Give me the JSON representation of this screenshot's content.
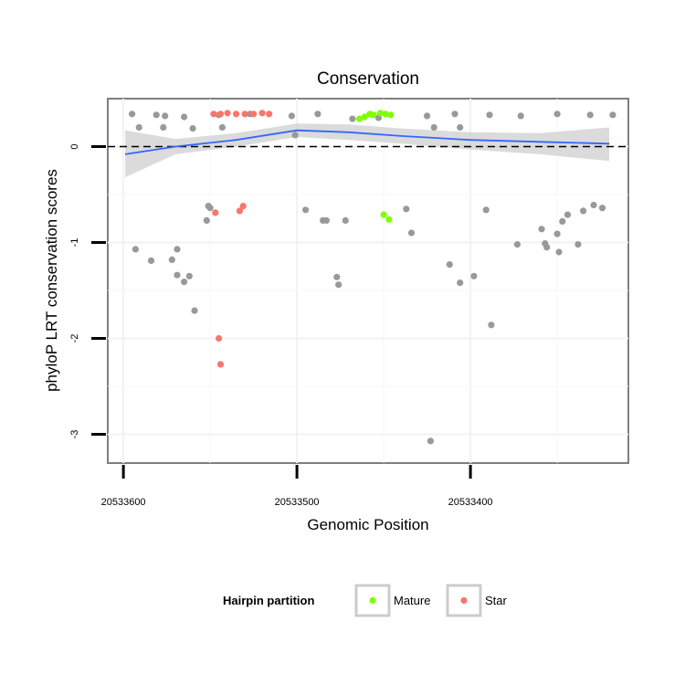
{
  "chart_data": {
    "type": "scatter",
    "title": "Conservation",
    "xlabel": "Genomic Position",
    "ylabel": "phyloP LRT conservation scores",
    "xlim": [
      20533609,
      20533309
    ],
    "ylim": [
      -3.3,
      0.5
    ],
    "x_reversed": true,
    "xticks": [
      20533600,
      20533500,
      20533400
    ],
    "yticks": [
      0,
      -1,
      -2,
      -3
    ],
    "reference_line": {
      "y": 0,
      "style": "dashed"
    },
    "grid": true,
    "legend": {
      "title": "Hairpin partition",
      "placement": "bottom",
      "entries": [
        {
          "name": "Mature",
          "color": "#7fff00"
        },
        {
          "name": "Star",
          "color": "#f8766d"
        }
      ]
    },
    "colors": {
      "other": "#999999",
      "Mature": "#7fff00",
      "Star": "#f8766d",
      "smooth": "#3366ff",
      "band": "#cccccc"
    },
    "series": [
      {
        "group": "Other",
        "points": [
          [
            20533595,
            0.34
          ],
          [
            20533581,
            0.33
          ],
          [
            20533576,
            0.32
          ],
          [
            20533565,
            0.31
          ],
          [
            20533545,
            0.33
          ],
          [
            20533527,
            0.34
          ],
          [
            20533503,
            0.32
          ],
          [
            20533488,
            0.34
          ],
          [
            20533468,
            0.29
          ],
          [
            20533453,
            0.3
          ],
          [
            20533425,
            0.32
          ],
          [
            20533409,
            0.34
          ],
          [
            20533389,
            0.33
          ],
          [
            20533371,
            0.32
          ],
          [
            20533350,
            0.34
          ],
          [
            20533331,
            0.33
          ],
          [
            20533318,
            0.33
          ],
          [
            20533591,
            0.2
          ],
          [
            20533577,
            0.2
          ],
          [
            20533560,
            0.19
          ],
          [
            20533543,
            0.2
          ],
          [
            20533421,
            0.2
          ],
          [
            20533406,
            0.2
          ],
          [
            20533501,
            0.12
          ],
          [
            20533593,
            -1.07
          ],
          [
            20533584,
            -1.19
          ],
          [
            20533572,
            -1.18
          ],
          [
            20533569,
            -1.07
          ],
          [
            20533569,
            -1.34
          ],
          [
            20533565,
            -1.41
          ],
          [
            20533562,
            -1.35
          ],
          [
            20533559,
            -1.71
          ],
          [
            20533551,
            -0.62
          ],
          [
            20533550,
            -0.64
          ],
          [
            20533552,
            -0.77
          ],
          [
            20533495,
            -0.66
          ],
          [
            20533485,
            -0.77
          ],
          [
            20533483,
            -0.77
          ],
          [
            20533472,
            -0.77
          ],
          [
            20533477,
            -1.36
          ],
          [
            20533476,
            -1.44
          ],
          [
            20533437,
            -0.65
          ],
          [
            20533434,
            -0.9
          ],
          [
            20533412,
            -1.23
          ],
          [
            20533406,
            -1.42
          ],
          [
            20533398,
            -1.35
          ],
          [
            20533391,
            -0.66
          ],
          [
            20533388,
            -1.86
          ],
          [
            20533423,
            -3.07
          ],
          [
            20533373,
            -1.02
          ],
          [
            20533359,
            -0.86
          ],
          [
            20533357,
            -1.01
          ],
          [
            20533356,
            -1.05
          ],
          [
            20533350,
            -0.91
          ],
          [
            20533349,
            -1.1
          ],
          [
            20533347,
            -0.78
          ],
          [
            20533344,
            -0.71
          ],
          [
            20533338,
            -1.02
          ],
          [
            20533335,
            -0.67
          ],
          [
            20533329,
            -0.61
          ],
          [
            20533324,
            -0.64
          ]
        ]
      },
      {
        "group": "Mature",
        "points": [
          [
            20533464,
            0.29
          ],
          [
            20533461,
            0.31
          ],
          [
            20533458,
            0.34
          ],
          [
            20533456,
            0.33
          ],
          [
            20533452,
            0.35
          ],
          [
            20533449,
            0.34
          ],
          [
            20533446,
            0.33
          ],
          [
            20533450,
            -0.71
          ],
          [
            20533447,
            -0.76
          ]
        ]
      },
      {
        "group": "Star",
        "points": [
          [
            20533548,
            0.34
          ],
          [
            20533544,
            0.34
          ],
          [
            20533540,
            0.35
          ],
          [
            20533535,
            0.34
          ],
          [
            20533530,
            0.34
          ],
          [
            20533525,
            0.34
          ],
          [
            20533520,
            0.35
          ],
          [
            20533516,
            0.34
          ],
          [
            20533547,
            -0.69
          ],
          [
            20533533,
            -0.67
          ],
          [
            20533531,
            -0.62
          ],
          [
            20533545,
            -2.0
          ],
          [
            20533544,
            -2.27
          ]
        ]
      }
    ],
    "smooth": {
      "x": [
        20533599,
        20533570,
        20533535,
        20533500,
        20533470,
        20533440,
        20533400,
        20533360,
        20533320
      ],
      "y": [
        -0.08,
        0.0,
        0.07,
        0.17,
        0.15,
        0.11,
        0.07,
        0.05,
        0.03
      ],
      "band_lower": [
        -0.32,
        -0.08,
        0.0,
        0.1,
        0.07,
        0.03,
        -0.03,
        -0.08,
        -0.15
      ],
      "band_upper": [
        0.17,
        0.08,
        0.14,
        0.24,
        0.23,
        0.19,
        0.15,
        0.14,
        0.2
      ]
    }
  }
}
